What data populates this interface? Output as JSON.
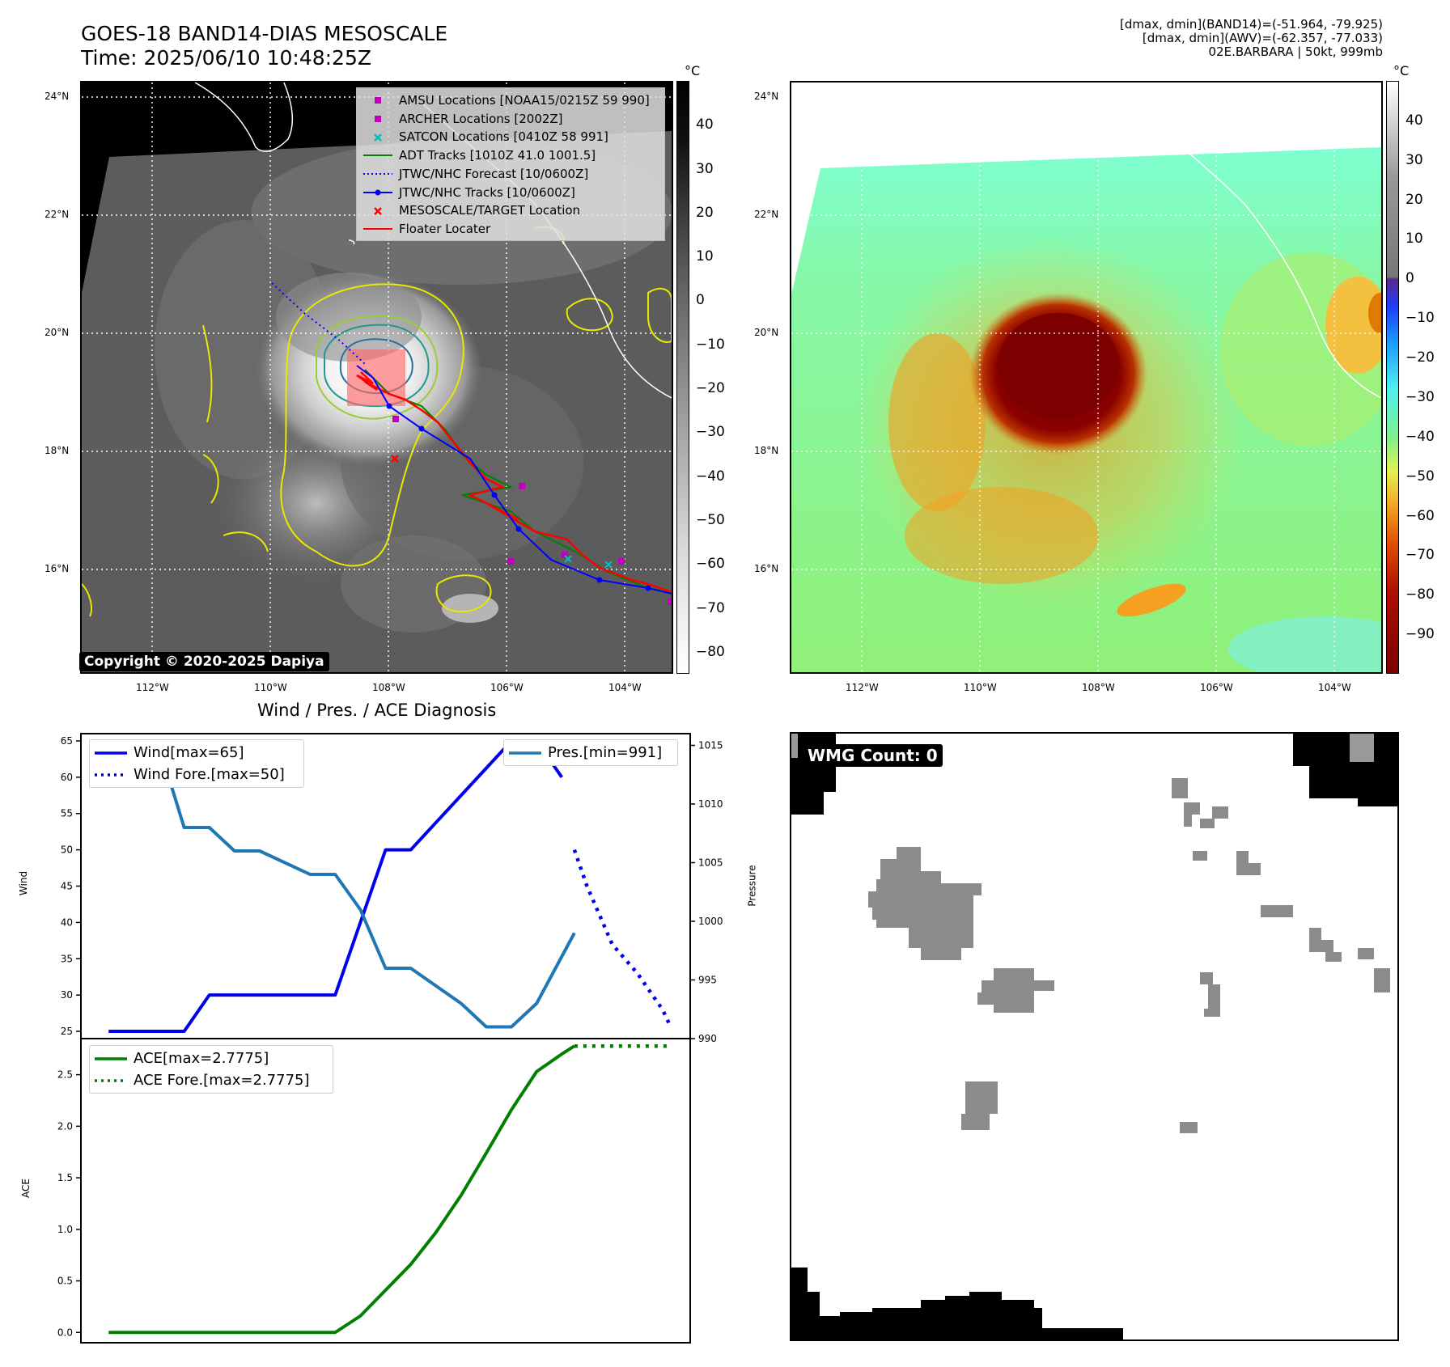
{
  "header": {
    "title_line1": "GOES-18 BAND14-DIAS MESOSCALE",
    "title_line2": "Time: 2025/06/10 10:48:25Z",
    "info_line1": "[dmax, dmin](BAND14)=(-51.964, -79.925)",
    "info_line2": "[dmax, dmin](AWV)=(-62.357, -77.033)",
    "info_line3": "02E.BARBARA | 50kt, 999mb"
  },
  "map_axes": {
    "lat_ticks": [
      "24°N",
      "22°N",
      "20°N",
      "18°N",
      "16°N"
    ],
    "lon_ticks": [
      "112°W",
      "110°W",
      "108°W",
      "106°W",
      "104°W"
    ],
    "lat_values": [
      24,
      22,
      20,
      18,
      16
    ],
    "lon_values": [
      112,
      110,
      108,
      106,
      104
    ]
  },
  "left_colorbar": {
    "unit": "°C",
    "ticks": [
      "40",
      "30",
      "20",
      "10",
      "0",
      "−10",
      "−20",
      "−30",
      "−40",
      "−50",
      "−60",
      "−70",
      "−80"
    ],
    "values": [
      40,
      30,
      20,
      10,
      0,
      -10,
      -20,
      -30,
      -40,
      -50,
      -60,
      -70,
      -80
    ],
    "range": [
      -85,
      50
    ]
  },
  "right_colorbar": {
    "unit": "°C",
    "ticks": [
      "40",
      "30",
      "20",
      "10",
      "0",
      "−10",
      "−20",
      "−30",
      "−40",
      "−50",
      "−60",
      "−70",
      "−80",
      "−90"
    ],
    "values": [
      40,
      30,
      20,
      10,
      0,
      -10,
      -20,
      -30,
      -40,
      -50,
      -60,
      -70,
      -80,
      -90
    ],
    "range": [
      -100,
      50
    ]
  },
  "legend": {
    "items": [
      {
        "label": "AMSU Locations [NOAA15/0215Z 59 990]",
        "symbol": "square",
        "color": "#bf00bf"
      },
      {
        "label": "ARCHER Locations [2002Z]",
        "symbol": "square",
        "color": "#bf00bf"
      },
      {
        "label": "SATCON Locations [0410Z 58 991]",
        "symbol": "x",
        "color": "#00bfbf"
      },
      {
        "label": "ADT Tracks [1010Z 41.0 1001.5]",
        "symbol": "line",
        "color": "#008000"
      },
      {
        "label": "JTWC/NHC Forecast [10/0600Z]",
        "symbol": "dotted",
        "color": "#0000ff"
      },
      {
        "label": "JTWC/NHC Tracks [10/0600Z]",
        "symbol": "line-dot",
        "color": "#0000ff"
      },
      {
        "label": "MESOSCALE/TARGET Location",
        "symbol": "x",
        "color": "#ff0000"
      },
      {
        "label": "Floater Locater",
        "symbol": "line",
        "color": "#ff0000"
      }
    ]
  },
  "copyright": "Copyright © 2020-2025 Dapiya",
  "wmg_label": "WMG Count: 0",
  "chart_data": [
    {
      "type": "line",
      "title": "Wind / Pres. / ACE Diagnosis",
      "ylabel": "Wind",
      "ylim": [
        24,
        66
      ],
      "yticks": [
        25,
        30,
        35,
        40,
        45,
        50,
        55,
        60,
        65
      ],
      "series": [
        {
          "name": "Wind[max=65]",
          "style": "solid",
          "color": "#0000ee",
          "x": [
            0,
            3,
            4,
            9,
            11,
            12,
            16,
            17,
            18
          ],
          "values": [
            25,
            25,
            30,
            30,
            50,
            50,
            65,
            65,
            60
          ]
        },
        {
          "name": "Wind Fore.[max=50]",
          "style": "dotted",
          "color": "#0000ee",
          "x": [
            18.5,
            19,
            20,
            21,
            22,
            22.3
          ],
          "values": [
            50,
            45,
            37,
            33,
            28,
            25.8
          ]
        }
      ]
    },
    {
      "type": "line",
      "ylabel": "Pressure",
      "ylim": [
        990,
        1016
      ],
      "yticks": [
        990,
        995,
        1000,
        1005,
        1010,
        1015
      ],
      "series": [
        {
          "name": "Pres.[min=991]",
          "style": "solid",
          "color": "#1f77b4",
          "x": [
            0,
            2,
            3,
            4,
            5,
            6,
            8,
            9,
            10,
            11,
            12,
            14,
            15,
            16,
            17,
            18.5
          ],
          "values": [
            1015,
            1015,
            1008,
            1008,
            1006,
            1006,
            1004,
            1004,
            1001,
            996,
            996,
            993,
            991,
            991,
            993,
            999
          ]
        }
      ]
    },
    {
      "type": "line",
      "ylabel": "ACE",
      "ylim": [
        -0.1,
        2.85
      ],
      "yticks": [
        0.0,
        0.5,
        1.0,
        1.5,
        2.0,
        2.5
      ],
      "ytick_labels": [
        "0.0",
        "0.5",
        "1.0",
        "1.5",
        "2.0",
        "2.5"
      ],
      "series": [
        {
          "name": "ACE[max=2.7775]",
          "style": "solid",
          "color": "#008000",
          "x": [
            0,
            9,
            10,
            11,
            12,
            13,
            14,
            15,
            16,
            17,
            18,
            18.5
          ],
          "values": [
            0,
            0,
            0.16,
            0.41,
            0.66,
            0.97,
            1.33,
            1.74,
            2.16,
            2.53,
            2.7,
            2.7775
          ]
        },
        {
          "name": "ACE Fore.[max=2.7775]",
          "style": "dotted",
          "color": "#008000",
          "x": [
            18.5,
            22.3
          ],
          "values": [
            2.7775,
            2.7775
          ]
        }
      ]
    }
  ]
}
